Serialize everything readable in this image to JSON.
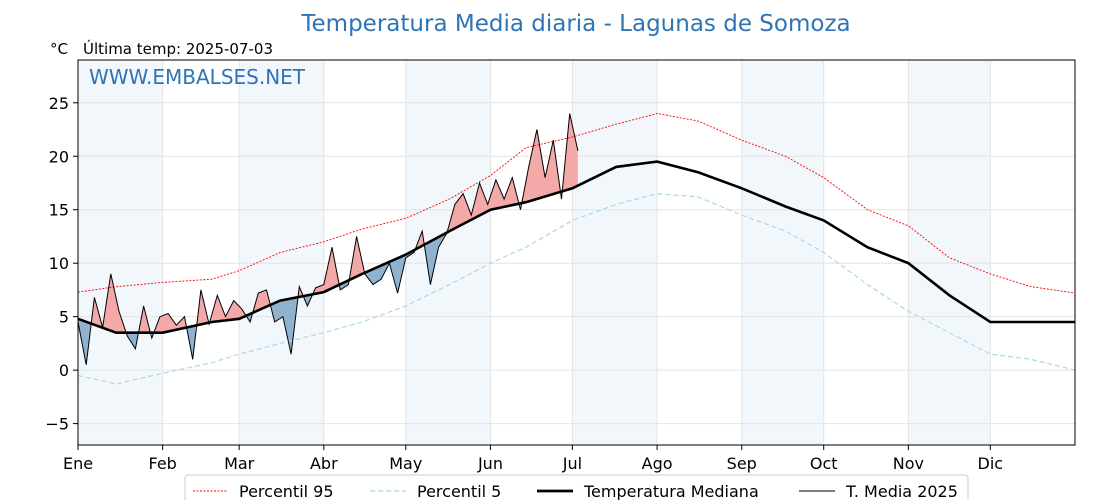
{
  "chart_data": {
    "type": "line",
    "title": "Temperatura Media diaria - Lagunas de Somoza",
    "unit_label": "°C",
    "subtitle": "Última temp: 2025-07-03",
    "watermark": "WWW.EMBALSES.NET",
    "ylim": [
      -7,
      29
    ],
    "yticks": [
      -5,
      0,
      5,
      10,
      15,
      20,
      25
    ],
    "ytick_labels": [
      "−5",
      "0",
      "5",
      "10",
      "15",
      "20",
      "25"
    ],
    "xlim": [
      1,
      366
    ],
    "xticks": [
      {
        "day": 1,
        "label": "Ene"
      },
      {
        "day": 32,
        "label": "Feb"
      },
      {
        "day": 60,
        "label": "Mar"
      },
      {
        "day": 91,
        "label": "Abr"
      },
      {
        "day": 121,
        "label": "May"
      },
      {
        "day": 152,
        "label": "Jun"
      },
      {
        "day": 182,
        "label": "Jul"
      },
      {
        "day": 213,
        "label": "Ago"
      },
      {
        "day": 244,
        "label": "Sep"
      },
      {
        "day": 274,
        "label": "Oct"
      },
      {
        "day": 305,
        "label": "Nov"
      },
      {
        "day": 335,
        "label": "Dic"
      }
    ],
    "shaded_months": [
      [
        1,
        32
      ],
      [
        60,
        91
      ],
      [
        121,
        152
      ],
      [
        182,
        213
      ],
      [
        244,
        274
      ],
      [
        305,
        335
      ]
    ],
    "grid": true,
    "legend_position": "bottom",
    "colors": {
      "p95": "#ff0000",
      "p5": "#add8e6",
      "median": "#000000",
      "current": "#000000",
      "above": "#f4a9a9",
      "below": "#8fb2cf",
      "month_shade": "#f2f7fc"
    },
    "series": [
      {
        "name": "Percentil 95",
        "key": "p95",
        "x": [
          1,
          15,
          32,
          50,
          60,
          75,
          91,
          105,
          121,
          137,
          152,
          165,
          182,
          198,
          213,
          228,
          244,
          260,
          274,
          290,
          305,
          320,
          335,
          350,
          366
        ],
        "y": [
          7.3,
          7.8,
          8.2,
          8.5,
          9.3,
          11.0,
          12.0,
          13.2,
          14.2,
          16.0,
          18.2,
          20.8,
          21.8,
          23.0,
          24.0,
          23.3,
          21.5,
          20.0,
          18.0,
          15.0,
          13.5,
          10.5,
          9.0,
          7.8,
          7.2
        ]
      },
      {
        "name": "Percentil 5",
        "key": "p5",
        "x": [
          1,
          15,
          32,
          50,
          60,
          75,
          91,
          105,
          121,
          137,
          152,
          165,
          182,
          198,
          213,
          228,
          244,
          260,
          274,
          290,
          305,
          320,
          335,
          350,
          366
        ],
        "y": [
          -0.5,
          -1.3,
          -0.3,
          0.7,
          1.5,
          2.5,
          3.5,
          4.5,
          6.0,
          8.0,
          10.0,
          11.5,
          14.0,
          15.5,
          16.5,
          16.2,
          14.5,
          13.0,
          11.0,
          8.0,
          5.5,
          3.5,
          1.5,
          1.0,
          0.0
        ]
      },
      {
        "name": "Temperatura Mediana",
        "key": "median",
        "x": [
          1,
          15,
          32,
          50,
          60,
          75,
          91,
          105,
          121,
          137,
          152,
          165,
          182,
          198,
          213,
          228,
          244,
          260,
          274,
          290,
          305,
          320,
          335,
          350,
          366
        ],
        "y": [
          4.8,
          3.5,
          3.5,
          4.5,
          4.8,
          6.5,
          7.3,
          9.0,
          10.8,
          13.0,
          15.0,
          15.7,
          17.0,
          19.0,
          19.5,
          18.5,
          17.0,
          15.3,
          14.0,
          11.5,
          10.0,
          7.0,
          4.5,
          4.5,
          4.5
        ]
      },
      {
        "name": "T. Media 2025",
        "key": "current",
        "x": [
          1,
          4,
          7,
          10,
          13,
          16,
          19,
          22,
          25,
          28,
          31,
          34,
          37,
          40,
          43,
          46,
          49,
          52,
          55,
          58,
          61,
          64,
          67,
          70,
          73,
          76,
          79,
          82,
          85,
          88,
          91,
          94,
          97,
          100,
          103,
          106,
          109,
          112,
          115,
          118,
          121,
          124,
          127,
          130,
          133,
          136,
          139,
          142,
          145,
          148,
          151,
          154,
          157,
          160,
          163,
          166,
          169,
          172,
          175,
          178,
          181,
          184
        ],
        "y": [
          4.5,
          0.5,
          6.8,
          4.0,
          9.0,
          5.5,
          3.2,
          2.0,
          6.0,
          3.0,
          5.0,
          5.3,
          4.2,
          5.0,
          1.0,
          7.5,
          4.3,
          7.0,
          5.0,
          6.5,
          5.7,
          4.5,
          7.2,
          7.5,
          4.5,
          5.0,
          1.5,
          7.8,
          6.0,
          7.7,
          8.0,
          11.5,
          7.5,
          8.0,
          12.5,
          9.0,
          8.0,
          8.5,
          10.0,
          7.2,
          10.5,
          11.0,
          13.0,
          8.0,
          11.5,
          12.8,
          15.5,
          16.5,
          14.5,
          17.5,
          15.5,
          17.8,
          16.0,
          18.0,
          15.0,
          19.0,
          22.5,
          18.0,
          21.5,
          16.0,
          24.0,
          20.5
        ]
      }
    ]
  },
  "legend": [
    {
      "label": "Percentil 95",
      "style": "p95"
    },
    {
      "label": "Percentil 5",
      "style": "p5"
    },
    {
      "label": "Temperatura Mediana",
      "style": "median"
    },
    {
      "label": "T. Media 2025",
      "style": "current"
    }
  ]
}
